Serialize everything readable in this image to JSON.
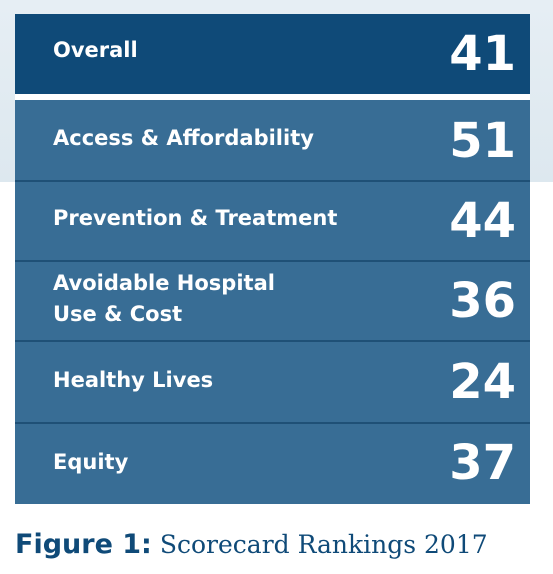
{
  "scorecard": {
    "rows": [
      {
        "label": "Overall",
        "value": "41"
      },
      {
        "label": "Access & Affordability",
        "value": "51"
      },
      {
        "label": "Prevention & Treatment",
        "value": "44"
      },
      {
        "label": "Avoidable Hospital\nUse & Cost",
        "value": "36"
      },
      {
        "label": "Healthy Lives",
        "value": "24"
      },
      {
        "label": "Equity",
        "value": "37"
      }
    ]
  },
  "caption": {
    "label": "Figure 1:",
    "text": "Scorecard Rankings 2017"
  },
  "colors": {
    "overall_row": "#0f4a78",
    "sub_rows": "#386d95",
    "caption": "#0f4a78",
    "background_band": "#e6eef4"
  }
}
